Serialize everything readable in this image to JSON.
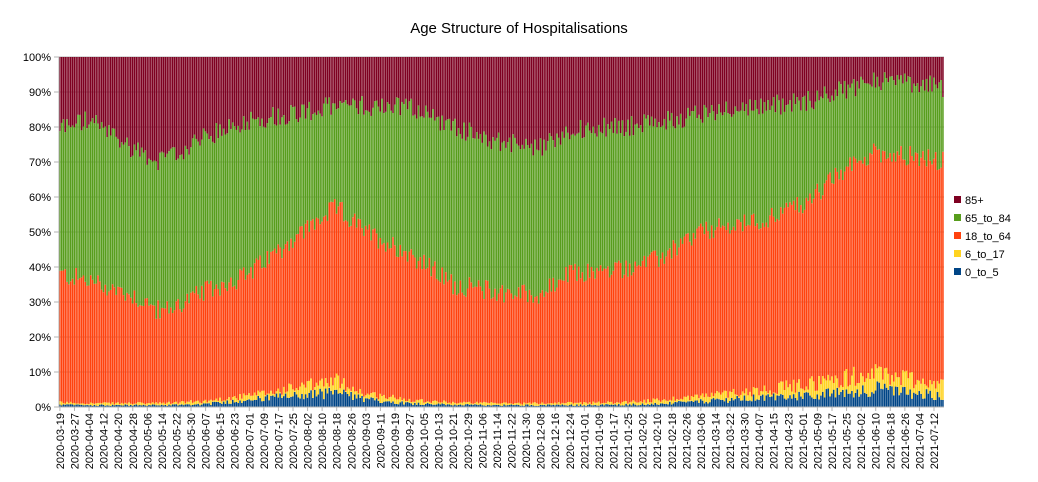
{
  "chart_data": {
    "type": "bar",
    "stacked": "percent",
    "title": "Age Structure of Hospitalisations",
    "xlabel": "",
    "ylabel": "",
    "ylim": [
      0,
      100
    ],
    "y_ticks": [
      "0%",
      "10%",
      "20%",
      "30%",
      "40%",
      "50%",
      "60%",
      "70%",
      "80%",
      "90%",
      "100%"
    ],
    "date_start": "2020-03-19",
    "date_end": "2021-07-17",
    "x_tick_labels": [
      "2020-03-19",
      "2020-03-27",
      "2020-04-04",
      "2020-04-12",
      "2020-04-20",
      "2020-04-28",
      "2020-05-06",
      "2020-05-14",
      "2020-05-22",
      "2020-05-30",
      "2020-06-07",
      "2020-06-15",
      "2020-06-23",
      "2020-07-01",
      "2020-07-09",
      "2020-07-17",
      "2020-07-25",
      "2020-08-02",
      "2020-08-10",
      "2020-08-18",
      "2020-08-26",
      "2020-09-03",
      "2020-09-11",
      "2020-09-19",
      "2020-09-27",
      "2020-10-05",
      "2020-10-13",
      "2020-10-21",
      "2020-10-29",
      "2020-11-06",
      "2020-11-14",
      "2020-11-22",
      "2020-11-30",
      "2020-12-08",
      "2020-12-16",
      "2020-12-24",
      "2021-01-01",
      "2021-01-09",
      "2021-01-17",
      "2021-01-25",
      "2021-02-02",
      "2021-02-10",
      "2021-02-18",
      "2021-02-26",
      "2021-03-06",
      "2021-03-14",
      "2021-03-22",
      "2021-03-30",
      "2021-04-07",
      "2021-04-15",
      "2021-04-23",
      "2021-05-01",
      "2021-05-09",
      "2021-05-17",
      "2021-05-25",
      "2021-06-02",
      "2021-06-10",
      "2021-06-18",
      "2021-06-26",
      "2021-07-04",
      "2021-07-12"
    ],
    "legend_position": "right",
    "grid": true,
    "series_order_bottom_to_top": [
      "0_to_5",
      "6_to_17",
      "18_to_64",
      "65_to_84",
      "85+"
    ],
    "legend": [
      {
        "name": "85+",
        "color": "#7e0021"
      },
      {
        "name": "65_to_84",
        "color": "#579d1c"
      },
      {
        "name": "18_to_64",
        "color": "#ff420e"
      },
      {
        "name": "6_to_17",
        "color": "#ffd320"
      },
      {
        "name": "0_to_5",
        "color": "#004586"
      }
    ],
    "key_points_cumulative_pct": [
      {
        "date": "2020-03-19",
        "to_0_to_5": 0.6,
        "to_6_to_17": 1.2,
        "to_18_to_64": 38,
        "to_65_to_84": 80
      },
      {
        "date": "2020-04-04",
        "to_0_to_5": 0.5,
        "to_6_to_17": 1.0,
        "to_18_to_64": 36,
        "to_65_to_84": 82
      },
      {
        "date": "2020-04-28",
        "to_0_to_5": 0.5,
        "to_6_to_17": 1.0,
        "to_18_to_64": 32,
        "to_65_to_84": 74
      },
      {
        "date": "2020-05-14",
        "to_0_to_5": 0.5,
        "to_6_to_17": 1.0,
        "to_18_to_64": 27,
        "to_65_to_84": 70
      },
      {
        "date": "2020-06-07",
        "to_0_to_5": 0.8,
        "to_6_to_17": 1.6,
        "to_18_to_64": 33,
        "to_65_to_84": 77
      },
      {
        "date": "2020-07-01",
        "to_0_to_5": 2,
        "to_6_to_17": 3,
        "to_18_to_64": 38,
        "to_65_to_84": 82
      },
      {
        "date": "2020-07-25",
        "to_0_to_5": 3,
        "to_6_to_17": 5,
        "to_18_to_64": 48,
        "to_65_to_84": 84
      },
      {
        "date": "2020-08-18",
        "to_0_to_5": 4,
        "to_6_to_17": 7,
        "to_18_to_64": 57,
        "to_65_to_84": 86
      },
      {
        "date": "2020-09-03",
        "to_0_to_5": 2,
        "to_6_to_17": 3.5,
        "to_18_to_64": 50,
        "to_65_to_84": 86
      },
      {
        "date": "2020-09-27",
        "to_0_to_5": 1,
        "to_6_to_17": 2,
        "to_18_to_64": 44,
        "to_65_to_84": 86
      },
      {
        "date": "2020-10-21",
        "to_0_to_5": 0.6,
        "to_6_to_17": 1.2,
        "to_18_to_64": 35,
        "to_65_to_84": 80
      },
      {
        "date": "2020-11-14",
        "to_0_to_5": 0.5,
        "to_6_to_17": 1,
        "to_18_to_64": 33,
        "to_65_to_84": 76
      },
      {
        "date": "2020-12-08",
        "to_0_to_5": 0.5,
        "to_6_to_17": 1,
        "to_18_to_64": 32,
        "to_65_to_84": 74
      },
      {
        "date": "2020-12-24",
        "to_0_to_5": 0.5,
        "to_6_to_17": 1.1,
        "to_18_to_64": 38,
        "to_65_to_84": 79
      },
      {
        "date": "2021-01-17",
        "to_0_to_5": 0.6,
        "to_6_to_17": 1.2,
        "to_18_to_64": 39,
        "to_65_to_84": 80
      },
      {
        "date": "2021-02-10",
        "to_0_to_5": 0.8,
        "to_6_to_17": 1.8,
        "to_18_to_64": 42,
        "to_65_to_84": 81
      },
      {
        "date": "2021-03-06",
        "to_0_to_5": 1.5,
        "to_6_to_17": 3,
        "to_18_to_64": 50,
        "to_65_to_84": 84
      },
      {
        "date": "2021-04-07",
        "to_0_to_5": 2.5,
        "to_6_to_17": 4.5,
        "to_18_to_64": 53,
        "to_65_to_84": 86
      },
      {
        "date": "2021-05-01",
        "to_0_to_5": 3,
        "to_6_to_17": 6,
        "to_18_to_64": 58,
        "to_65_to_84": 87
      },
      {
        "date": "2021-05-25",
        "to_0_to_5": 4,
        "to_6_to_17": 8,
        "to_18_to_64": 68,
        "to_65_to_84": 91
      },
      {
        "date": "2021-06-10",
        "to_0_to_5": 5,
        "to_6_to_17": 9,
        "to_18_to_64": 73,
        "to_65_to_84": 93
      },
      {
        "date": "2021-06-26",
        "to_0_to_5": 4,
        "to_6_to_17": 8,
        "to_18_to_64": 72,
        "to_65_to_84": 93
      },
      {
        "date": "2021-07-17",
        "to_0_to_5": 3,
        "to_6_to_17": 6,
        "to_18_to_64": 70,
        "to_65_to_84": 91
      }
    ]
  }
}
